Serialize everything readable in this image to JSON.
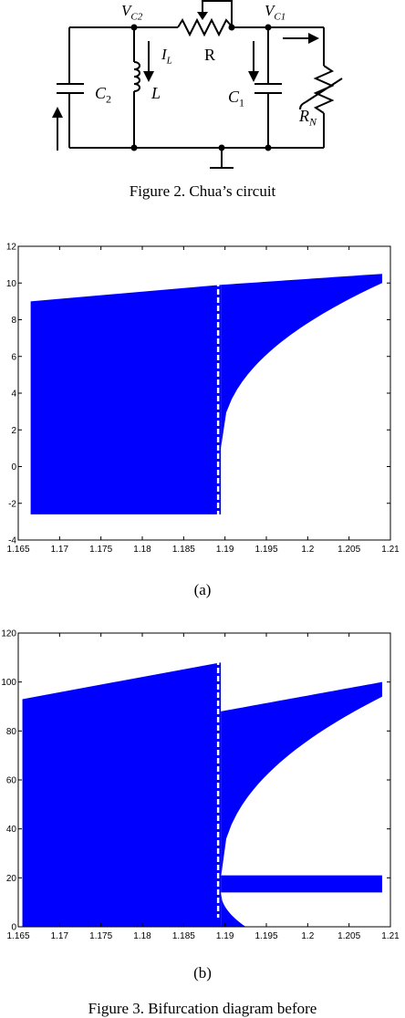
{
  "circuit": {
    "labels": {
      "vc2": "V",
      "vc2_sub": "C2",
      "vc1": "V",
      "vc1_sub": "C1",
      "il": "I",
      "il_sub": "L",
      "r": "R",
      "c2": "C",
      "c2_sub": "2",
      "l": "L",
      "c1": "C",
      "c1_sub": "1",
      "rn": "R",
      "rn_sub": "N"
    }
  },
  "figure2_caption": "Figure 2. Chua’s circuit",
  "figure3a_label": "(a)",
  "figure3b_label": "(b)",
  "figure3_caption": "Figure 3. Bifurcation diagram before",
  "chart_data": [
    {
      "type": "scatter",
      "color": "#0000ff",
      "xlim": [
        1.165,
        1.21
      ],
      "ylim": [
        -4,
        12
      ],
      "xticks": [
        "1.165",
        "1.17",
        "1.175",
        "1.18",
        "1.185",
        "1.19",
        "1.195",
        "1.2",
        "1.205",
        "1.21"
      ],
      "yticks": [
        "-4",
        "-2",
        "0",
        "2",
        "4",
        "6",
        "8",
        "10",
        "12"
      ],
      "chaotic_band": {
        "x": [
          1.1665,
          1.1895
        ],
        "y_bottom": -2.6,
        "y_top_start": 9.0,
        "y_top_end": 9.9
      },
      "upper_branch": {
        "x_start": 1.1895,
        "x_end": 1.209,
        "y_top_start": 9.9,
        "y_top_end": 10.5,
        "y_bottom_start": 1.0,
        "y_bottom_end": 10.0
      },
      "periodic_window_x": 1.1895
    },
    {
      "type": "scatter",
      "color": "#0000ff",
      "xlim": [
        1.165,
        1.21
      ],
      "ylim": [
        0,
        120
      ],
      "xticks": [
        "1.165",
        "1.17",
        "1.175",
        "1.18",
        "1.185",
        "1.19",
        "1.195",
        "1.2",
        "1.205",
        "1.21"
      ],
      "yticks": [
        "0",
        "20",
        "40",
        "60",
        "80",
        "100",
        "120"
      ],
      "chaotic_band": {
        "x": [
          1.1655,
          1.1895
        ],
        "y_bottom": 0,
        "y_top_start": 93,
        "y_top_end": 108
      },
      "upper_branch": {
        "x_start": 1.1895,
        "x_end": 1.209,
        "y_top_start": 88,
        "y_top_end": 100,
        "y_bottom_start": 20,
        "y_bottom_end": 94
      },
      "lower_branch": {
        "x_start": 1.1895,
        "x_end": 1.209,
        "y_top": 21,
        "y_bottom": 14,
        "tail_bottom_x": 1.1925
      },
      "periodic_window_x": 1.1895
    }
  ]
}
